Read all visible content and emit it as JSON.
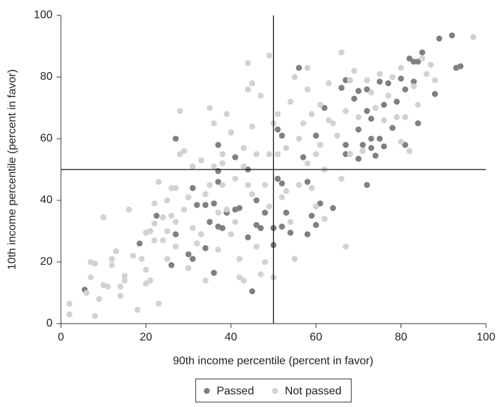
{
  "chart_data": {
    "type": "scatter",
    "x_label": "90th income percentile (percent in favor)",
    "y_label": "10th income percentile (percent in favor)",
    "xlim": [
      0,
      100
    ],
    "ylim": [
      0,
      100
    ],
    "xticks": [
      0,
      20,
      40,
      60,
      80,
      100
    ],
    "yticks": [
      0,
      20,
      40,
      60,
      80,
      100
    ],
    "reference_lines": {
      "x": 50,
      "y": 50
    },
    "legend": "bottom",
    "series": [
      {
        "name": "Passed",
        "color": "#808080",
        "x": [
          5.6,
          18.5,
          21,
          22.5,
          26,
          27,
          27,
          30,
          31,
          31,
          32,
          34,
          34,
          35,
          36,
          36,
          37,
          37,
          37,
          37,
          38,
          39,
          41,
          41,
          42,
          44,
          44,
          45,
          46,
          46,
          47,
          48,
          50,
          50,
          51,
          51,
          52,
          52,
          52,
          53,
          54,
          56,
          57,
          58,
          58,
          59,
          60,
          60,
          61,
          62,
          64,
          66,
          67,
          67,
          67,
          68,
          69,
          70,
          70,
          71,
          72,
          72,
          72,
          73,
          73,
          74,
          75,
          75,
          76,
          76,
          77,
          78,
          79,
          80,
          81,
          81,
          82,
          83,
          83,
          84,
          84,
          85,
          88,
          89,
          92,
          93,
          94,
          70,
          73
        ],
        "values": [
          11,
          26,
          30,
          35,
          19,
          60,
          29,
          22.5,
          44,
          21,
          38.5,
          24.5,
          38.5,
          33,
          39,
          16.5,
          58,
          49.5,
          46,
          31.5,
          31,
          36,
          54,
          37,
          37.5,
          50,
          28,
          10.5,
          40,
          32,
          31,
          36,
          31,
          25.5,
          47,
          63,
          61,
          45.5,
          31.5,
          36,
          29.5,
          83,
          54,
          46,
          29,
          35,
          61,
          32,
          39,
          70,
          37.5,
          76.5,
          79,
          58,
          55,
          79,
          73,
          53.5,
          63,
          58,
          76,
          69,
          45,
          57,
          60,
          54.5,
          78.5,
          60,
          57.5,
          71,
          78,
          63.5,
          72,
          79.5,
          58,
          76,
          86,
          85,
          78.5,
          85,
          65,
          88,
          74.5,
          92.5,
          93.5,
          83,
          83.5,
          75.5,
          66.5
        ]
      },
      {
        "name": "Not passed",
        "color": "#d2d2d2",
        "x": [
          2,
          2,
          6,
          7,
          7,
          8,
          8,
          9,
          10,
          10,
          11,
          12,
          12,
          13,
          14,
          14,
          15,
          15,
          17,
          18,
          19,
          20,
          20,
          20,
          21,
          21,
          22,
          22,
          22,
          23,
          23,
          24,
          24,
          25,
          25,
          25,
          26,
          26,
          27,
          27,
          27,
          28,
          28,
          29,
          29,
          30,
          30,
          31,
          31,
          33,
          33,
          34,
          34,
          35,
          35,
          36,
          36,
          37,
          37,
          38,
          38,
          39,
          39,
          40,
          40,
          41,
          41,
          42,
          42,
          43,
          43,
          43,
          44,
          44,
          44,
          45,
          45,
          45,
          46,
          46,
          47,
          47,
          48,
          48,
          49,
          49,
          49,
          50,
          50,
          51,
          51,
          52,
          53,
          53,
          54,
          54,
          55,
          55,
          56,
          56,
          57,
          58,
          58,
          59,
          59,
          60,
          60,
          61,
          61,
          62,
          62,
          63,
          63,
          64,
          65,
          66,
          66,
          67,
          67,
          68,
          68,
          69,
          70,
          71,
          72,
          73,
          74,
          75,
          76,
          77,
          78,
          79,
          80,
          80,
          81,
          82,
          83,
          84,
          85,
          86,
          87,
          97,
          88,
          38,
          32,
          16,
          58
        ],
        "values": [
          3,
          6.5,
          10,
          15,
          20,
          2.5,
          19.5,
          8,
          12.5,
          34.5,
          12,
          19,
          21,
          23.5,
          12,
          9,
          14,
          15.5,
          22,
          4.5,
          21,
          13,
          17.5,
          29.5,
          14,
          30,
          27,
          39,
          32.5,
          46,
          6.5,
          34.5,
          27,
          21,
          30,
          40,
          44,
          35,
          44,
          25,
          33,
          69,
          55,
          56,
          37,
          41,
          18,
          51,
          31,
          53,
          29,
          14,
          42,
          70,
          45,
          65,
          51,
          36,
          24,
          52,
          55,
          68,
          37,
          62,
          29,
          33,
          47,
          15,
          21,
          51,
          57,
          14,
          84.5,
          76,
          45,
          78,
          64,
          42,
          25,
          55,
          74,
          16,
          45,
          20,
          87,
          55,
          38,
          65,
          15,
          68,
          55,
          41,
          43,
          57,
          72,
          33,
          80,
          21,
          60,
          45,
          65,
          76,
          52,
          68,
          44,
          55,
          38,
          71,
          58,
          50,
          34,
          78,
          66,
          65,
          61,
          88,
          47,
          25,
          69,
          79,
          55,
          82,
          67,
          56,
          79,
          75,
          70,
          81,
          66,
          74,
          80,
          67,
          83,
          59,
          67,
          56,
          77,
          71,
          86,
          81,
          84,
          93,
          79,
          45,
          26,
          37,
          83
        ]
      }
    ]
  }
}
